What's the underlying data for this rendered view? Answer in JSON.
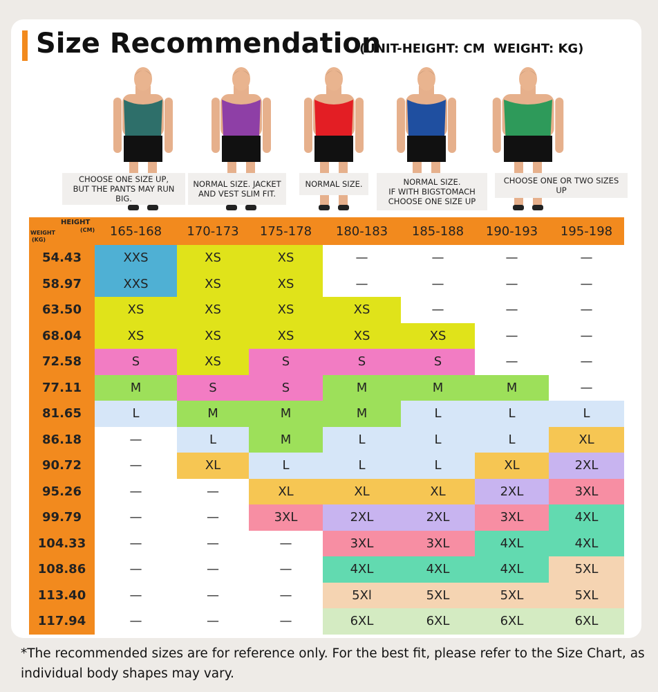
{
  "header": {
    "title": "Size Recommendation",
    "unit_note": "(UNIT-HEIGHT: CM  WEIGHT: KG)"
  },
  "figures": [
    {
      "caption": "CHOOSE ONE SIZE UP,\nBUT THE PANTS MAY RUN BIG.",
      "color": "#2e6f6a"
    },
    {
      "caption": "NORMAL SIZE. JACKET\nAND VEST SLIM FIT.",
      "color": "#8e3fa6"
    },
    {
      "caption": "NORMAL SIZE.",
      "color": "#e31e24"
    },
    {
      "caption": "NORMAL SIZE.\nIF WITH BIGSTOMACH\nCHOOSE ONE SIZE UP",
      "color": "#1f4fa0"
    },
    {
      "caption": "CHOOSE ONE OR TWO SIZES UP",
      "color": "#2e9a5a"
    }
  ],
  "table": {
    "corner": {
      "height": "HEIGHT",
      "height_unit": "(CM)",
      "weight": "WEIGHT",
      "weight_unit": "(KG)"
    },
    "columns": [
      "165-168",
      "170-173",
      "175-178",
      "180-183",
      "185-188",
      "190-193",
      "195-198"
    ],
    "rows": [
      {
        "weight": "54.43",
        "cells": [
          "XXS",
          "XS",
          "XS",
          "—",
          "—",
          "—",
          "—"
        ],
        "colors": [
          "#4fb0d4",
          "#e0e31a",
          "#e0e31a",
          "#ffffff",
          "#ffffff",
          "#ffffff",
          "#ffffff"
        ]
      },
      {
        "weight": "58.97",
        "cells": [
          "XXS",
          "XS",
          "XS",
          "—",
          "—",
          "—",
          "—"
        ],
        "colors": [
          "#4fb0d4",
          "#e0e31a",
          "#e0e31a",
          "#ffffff",
          "#ffffff",
          "#ffffff",
          "#ffffff"
        ]
      },
      {
        "weight": "63.50",
        "cells": [
          "XS",
          "XS",
          "XS",
          "XS",
          "—",
          "—",
          "—"
        ],
        "colors": [
          "#e0e31a",
          "#e0e31a",
          "#e0e31a",
          "#e0e31a",
          "#ffffff",
          "#ffffff",
          "#ffffff"
        ]
      },
      {
        "weight": "68.04",
        "cells": [
          "XS",
          "XS",
          "XS",
          "XS",
          "XS",
          "—",
          "—"
        ],
        "colors": [
          "#e0e31a",
          "#e0e31a",
          "#e0e31a",
          "#e0e31a",
          "#e0e31a",
          "#ffffff",
          "#ffffff"
        ]
      },
      {
        "weight": "72.58",
        "cells": [
          "S",
          "XS",
          "S",
          "S",
          "S",
          "—",
          "—"
        ],
        "colors": [
          "#f27cc3",
          "#e0e31a",
          "#f27cc3",
          "#f27cc3",
          "#f27cc3",
          "#ffffff",
          "#ffffff"
        ]
      },
      {
        "weight": "77.11",
        "cells": [
          "M",
          "S",
          "S",
          "M",
          "M",
          "M",
          "—"
        ],
        "colors": [
          "#9de05a",
          "#f27cc3",
          "#f27cc3",
          "#9de05a",
          "#9de05a",
          "#9de05a",
          "#ffffff"
        ]
      },
      {
        "weight": "81.65",
        "cells": [
          "L",
          "M",
          "M",
          "M",
          "L",
          "L",
          "L"
        ],
        "colors": [
          "#d6e6f8",
          "#9de05a",
          "#9de05a",
          "#9de05a",
          "#d6e6f8",
          "#d6e6f8",
          "#d6e6f8"
        ]
      },
      {
        "weight": "86.18",
        "cells": [
          "—",
          "L",
          "M",
          "L",
          "L",
          "L",
          "XL"
        ],
        "colors": [
          "#ffffff",
          "#d6e6f8",
          "#9de05a",
          "#d6e6f8",
          "#d6e6f8",
          "#d6e6f8",
          "#f6c653"
        ]
      },
      {
        "weight": "90.72",
        "cells": [
          "—",
          "XL",
          "L",
          "L",
          "L",
          "XL",
          "2XL"
        ],
        "colors": [
          "#ffffff",
          "#f6c653",
          "#d6e6f8",
          "#d6e6f8",
          "#d6e6f8",
          "#f6c653",
          "#c8b4f0"
        ]
      },
      {
        "weight": "95.26",
        "cells": [
          "—",
          "—",
          "XL",
          "XL",
          "XL",
          "2XL",
          "3XL"
        ],
        "colors": [
          "#ffffff",
          "#ffffff",
          "#f6c653",
          "#f6c653",
          "#f6c653",
          "#c8b4f0",
          "#f78ea3"
        ]
      },
      {
        "weight": "99.79",
        "cells": [
          "—",
          "—",
          "3XL",
          "2XL",
          "2XL",
          "3XL",
          "4XL"
        ],
        "colors": [
          "#ffffff",
          "#ffffff",
          "#f78ea3",
          "#c8b4f0",
          "#c8b4f0",
          "#f78ea3",
          "#62dab0"
        ]
      },
      {
        "weight": "104.33",
        "cells": [
          "—",
          "—",
          "—",
          "3XL",
          "3XL",
          "4XL",
          "4XL"
        ],
        "colors": [
          "#ffffff",
          "#ffffff",
          "#ffffff",
          "#f78ea3",
          "#f78ea3",
          "#62dab0",
          "#62dab0"
        ]
      },
      {
        "weight": "108.86",
        "cells": [
          "—",
          "—",
          "—",
          "4XL",
          "4XL",
          "4XL",
          "5XL"
        ],
        "colors": [
          "#ffffff",
          "#ffffff",
          "#ffffff",
          "#62dab0",
          "#62dab0",
          "#62dab0",
          "#f5d4b2"
        ]
      },
      {
        "weight": "113.40",
        "cells": [
          "—",
          "—",
          "—",
          "5Xl",
          "5XL",
          "5XL",
          "5XL"
        ],
        "colors": [
          "#ffffff",
          "#ffffff",
          "#ffffff",
          "#f5d4b2",
          "#f5d4b2",
          "#f5d4b2",
          "#f5d4b2"
        ]
      },
      {
        "weight": "117.94",
        "cells": [
          "—",
          "—",
          "—",
          "6XL",
          "6XL",
          "6XL",
          "6XL"
        ],
        "colors": [
          "#ffffff",
          "#ffffff",
          "#ffffff",
          "#d4ebc2",
          "#d4ebc2",
          "#d4ebc2",
          "#d4ebc2"
        ]
      }
    ]
  },
  "footnote": "*The recommended sizes are for reference only. For the best fit, please refer to the Size Chart, as individual body shapes may vary."
}
